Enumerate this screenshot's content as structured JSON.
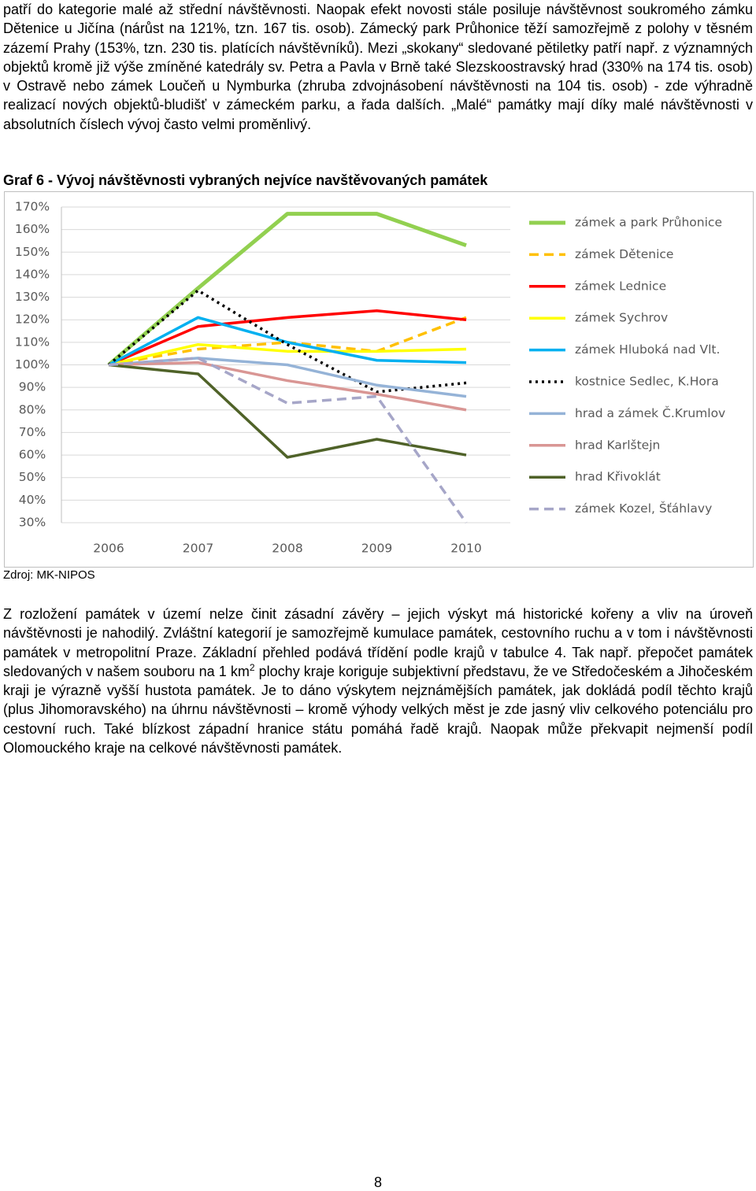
{
  "paragraphs": [
    "patří do kategorie malé až střední návštěvnosti. Naopak efekt novosti stále posiluje návštěvnost soukromého zámku Dětenice u Jičína (nárůst na 121%, tzn. 167 tis. osob). Zámecký park Průhonice těží samozřejmě z polohy v těsném zázemí Prahy (153%, tzn. 230 tis. platících návštěvníků). Mezi „skokany“ sledované pětiletky patří např. z významných objektů kromě již výše zmíněné katedrály sv. Petra a Pavla v Brně také Slezskoostravský hrad (330% na 174 tis. osob) v Ostravě nebo zámek Loučeň u Nymburka (zhruba zdvojnásobení návštěvnosti na 104 tis. osob) - zde výhradně realizací nových objektů-bludišť v zámeckém parku, a řada dalších. „Malé“ památky mají díky malé návštěvnosti v absolutních číslech vývoj často velmi proměnlivý."
  ],
  "chart_caption": "Graf 6 - Vývoj návštěvnosti vybraných nejvíce navštěvovaných památek",
  "chart_data": {
    "type": "line",
    "categories": [
      "2006",
      "2007",
      "2008",
      "2009",
      "2010"
    ],
    "ylim": [
      30,
      170
    ],
    "yticks": [
      {
        "value": 30,
        "label": "30%"
      },
      {
        "value": 40,
        "label": "40%"
      },
      {
        "value": 50,
        "label": "50%"
      },
      {
        "value": 60,
        "label": "60%"
      },
      {
        "value": 70,
        "label": "70%"
      },
      {
        "value": 80,
        "label": "80%"
      },
      {
        "value": 90,
        "label": "90%"
      },
      {
        "value": 100,
        "label": "100%"
      },
      {
        "value": 110,
        "label": "110%"
      },
      {
        "value": 120,
        "label": "120%"
      },
      {
        "value": 130,
        "label": "130%"
      },
      {
        "value": 140,
        "label": "140%"
      },
      {
        "value": 150,
        "label": "150%"
      },
      {
        "value": 160,
        "label": "160%"
      },
      {
        "value": 170,
        "label": "170%"
      }
    ],
    "grid": true,
    "legend": "right",
    "series": [
      {
        "name": "zámek a park Průhonice",
        "color": "#92d050",
        "dash": "solid",
        "values": [
          100,
          134,
          167,
          167,
          153
        ]
      },
      {
        "name": "zámek Dětenice",
        "color": "#ffc000",
        "dash": "dashed",
        "values": [
          100,
          107,
          110,
          106,
          121
        ]
      },
      {
        "name": "zámek Lednice",
        "color": "#ff0000",
        "dash": "solid",
        "values": [
          100,
          117,
          121,
          124,
          120
        ]
      },
      {
        "name": "zámek Sychrov",
        "color": "#ffff00",
        "dash": "solid",
        "values": [
          100,
          109,
          106,
          106,
          107
        ]
      },
      {
        "name": "zámek Hluboká nad Vlt.",
        "color": "#00b0f0",
        "dash": "solid",
        "values": [
          100,
          121,
          110,
          102,
          101
        ]
      },
      {
        "name": "kostnice Sedlec, K.Hora",
        "color": "#000000",
        "dash": "dotted",
        "values": [
          100,
          133,
          109,
          88,
          92
        ]
      },
      {
        "name": "hrad a zámek Č.Krumlov",
        "color": "#95b3d7",
        "dash": "solid",
        "values": [
          100,
          103,
          100,
          91,
          86
        ]
      },
      {
        "name": "hrad Karlštejn",
        "color": "#d99694",
        "dash": "solid",
        "values": [
          100,
          101,
          93,
          87,
          80
        ]
      },
      {
        "name": "hrad Křivoklát",
        "color": "#4f6228",
        "dash": "solid",
        "values": [
          100,
          96,
          59,
          67,
          60
        ]
      },
      {
        "name": "zámek Kozel, Šťáhlavy",
        "color": "#a6a6c8",
        "dash": "dashed",
        "values": [
          100,
          103,
          83,
          86,
          30
        ]
      }
    ]
  },
  "source": "Zdroj: MK-NIPOS",
  "paragraph2": {
    "before": "Z rozložení památek v území nelze činit zásadní závěry – jejich výskyt má historické kořeny a vliv na úroveň návštěvnosti je nahodilý. Zvláštní kategorií je samozřejmě kumulace památek, cestovního ruchu a v tom i návštěvnosti památek v metropolitní Praze. Základní přehled podává třídění podle krajů v tabulce 4. Tak např. přepočet památek sledovaných v našem souboru na 1 km",
    "sup": "2",
    "after": " plochy kraje koriguje subjektivní představu, že ve Středočeském a Jihočeském kraji je výrazně vyšší hustota památek. Je to dáno výskytem nejznámějších památek, jak dokládá podíl těchto krajů (plus Jihomoravského) na úhrnu návštěvnosti – kromě výhody velkých měst je zde jasný vliv celkového potenciálu pro cestovní ruch. Také blízkost západní hranice státu pomáhá řadě krajů. Naopak může překvapit nejmenší podíl Olomouckého kraje na celkové návštěvnosti památek."
  },
  "page_number": "8"
}
